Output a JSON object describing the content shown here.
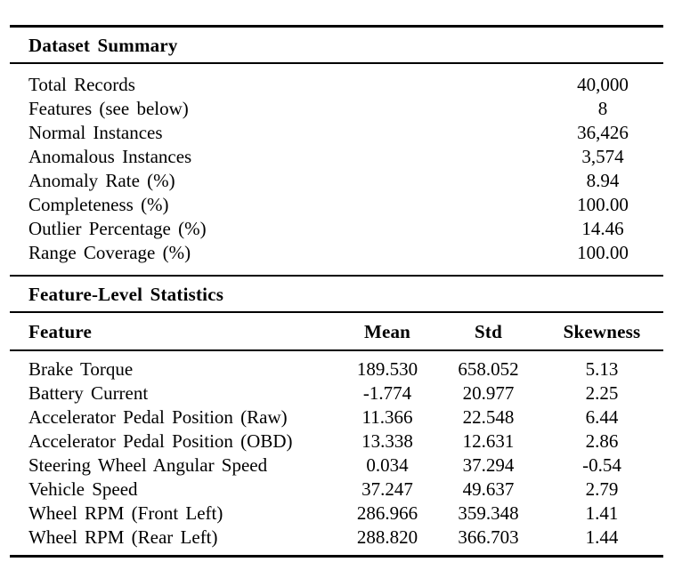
{
  "colors": {
    "background": "#ffffff",
    "text": "#000000",
    "rule": "#000000"
  },
  "summary": {
    "title": "Dataset Summary",
    "rows": [
      {
        "label": "Total Records",
        "value": "40,000"
      },
      {
        "label": "Features (see below)",
        "value": "8"
      },
      {
        "label": "Normal Instances",
        "value": "36,426"
      },
      {
        "label": "Anomalous Instances",
        "value": "3,574"
      },
      {
        "label": "Anomaly Rate (%)",
        "value": "8.94"
      },
      {
        "label": "Completeness (%)",
        "value": "100.00"
      },
      {
        "label": "Outlier Percentage (%)",
        "value": "14.46"
      },
      {
        "label": "Range Coverage (%)",
        "value": "100.00"
      }
    ]
  },
  "features": {
    "title": "Feature-Level Statistics",
    "columns": [
      "Feature",
      "Mean",
      "Std",
      "Skewness"
    ],
    "rows": [
      {
        "feature": "Brake Torque",
        "mean": "189.530",
        "std": "658.052",
        "skewness": "5.13"
      },
      {
        "feature": "Battery Current",
        "mean": "-1.774",
        "std": "20.977",
        "skewness": "2.25"
      },
      {
        "feature": "Accelerator Pedal Position (Raw)",
        "mean": "11.366",
        "std": "22.548",
        "skewness": "6.44"
      },
      {
        "feature": "Accelerator Pedal Position (OBD)",
        "mean": "13.338",
        "std": "12.631",
        "skewness": "2.86"
      },
      {
        "feature": "Steering Wheel Angular Speed",
        "mean": "0.034",
        "std": "37.294",
        "skewness": "-0.54"
      },
      {
        "feature": "Vehicle Speed",
        "mean": "37.247",
        "std": "49.637",
        "skewness": "2.79"
      },
      {
        "feature": "Wheel RPM (Front Left)",
        "mean": "286.966",
        "std": "359.348",
        "skewness": "1.41"
      },
      {
        "feature": "Wheel RPM (Rear Left)",
        "mean": "288.820",
        "std": "366.703",
        "skewness": "1.44"
      }
    ]
  }
}
